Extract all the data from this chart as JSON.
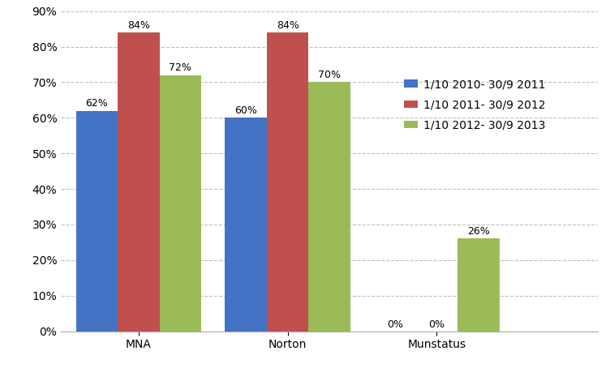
{
  "categories": [
    "MNA",
    "Norton",
    "Munstatus"
  ],
  "series": [
    {
      "label": "1/10 2010- 30/9 2011",
      "values": [
        0.62,
        0.6,
        0.0
      ],
      "color": "#4472C4"
    },
    {
      "label": "1/10 2011- 30/9 2012",
      "values": [
        0.84,
        0.84,
        0.0
      ],
      "color": "#C0504D"
    },
    {
      "label": "1/10 2012- 30/9 2013",
      "values": [
        0.72,
        0.7,
        0.26
      ],
      "color": "#9BBB59"
    }
  ],
  "ylim": [
    0,
    0.9
  ],
  "yticks": [
    0.0,
    0.1,
    0.2,
    0.3,
    0.4,
    0.5,
    0.6,
    0.7,
    0.8,
    0.9
  ],
  "bar_width": 0.28,
  "group_positions": [
    0.42,
    1.42,
    2.42
  ],
  "background_color": "#FFFFFF",
  "grid_color": "#BFBFBF",
  "label_fontsize": 9,
  "tick_fontsize": 10,
  "legend_fontsize": 10,
  "xlim": [
    -0.1,
    3.5
  ]
}
